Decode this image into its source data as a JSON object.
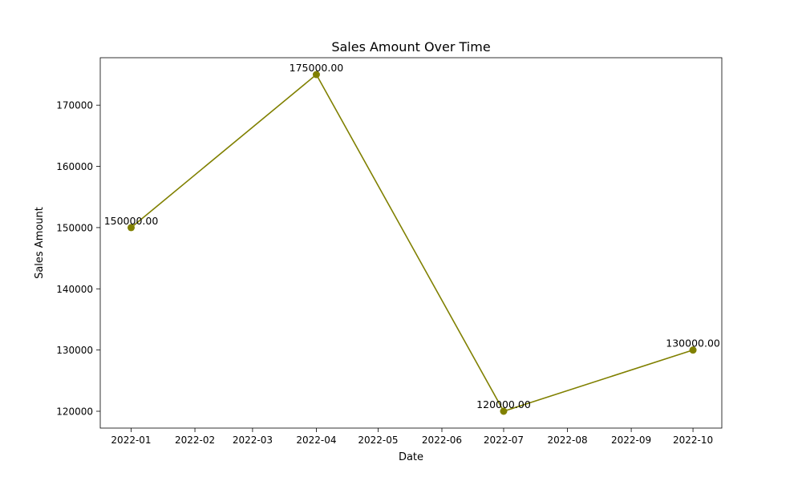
{
  "chart_data": {
    "type": "line",
    "title": "Sales Amount Over Time",
    "xlabel": "Date",
    "ylabel": "Sales Amount",
    "x": [
      "2022-01-01",
      "2022-04-01",
      "2022-07-01",
      "2022-10-01"
    ],
    "series": [
      {
        "values": [
          150000,
          175000,
          120000,
          130000
        ],
        "data_labels": [
          "150000.00",
          "175000.00",
          "120000.00",
          "130000.00"
        ],
        "color": "#808000",
        "marker": "circle"
      }
    ],
    "xlim": [
      "2021-12-17",
      "2022-10-15"
    ],
    "ylim": [
      117250,
      177750
    ],
    "x_ticks": [
      "2022-01",
      "2022-02",
      "2022-03",
      "2022-04",
      "2022-05",
      "2022-06",
      "2022-07",
      "2022-08",
      "2022-09",
      "2022-10"
    ],
    "y_ticks": [
      120000,
      130000,
      140000,
      150000,
      160000,
      170000
    ],
    "grid": false,
    "legend": "none"
  }
}
